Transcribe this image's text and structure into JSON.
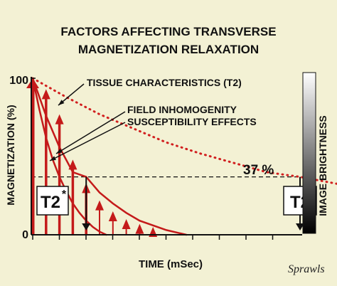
{
  "chart_data": {
    "type": "line",
    "title_line1": "FACTORS AFFECTING TRANSVERSE",
    "title_line2": "MAGNETIZATION RELAXATION",
    "xlabel": "TIME (mSec)",
    "ylabel": "MAGNETIZATION (%)",
    "y_ticks": [
      "100",
      "0"
    ],
    "ylim": [
      0,
      100
    ],
    "reference_level": {
      "value": 37,
      "label": "37 %"
    },
    "series": [
      {
        "name": "TISSUE CHARACTERISTICS (T2)",
        "style": "dotted",
        "color": "#d11f1f",
        "points": [
          [
            0,
            100
          ],
          [
            5,
            88
          ],
          [
            10,
            77
          ],
          [
            15,
            68
          ],
          [
            20,
            59
          ],
          [
            25,
            52
          ],
          [
            30,
            46
          ],
          [
            35,
            40
          ],
          [
            40,
            37
          ],
          [
            45,
            33
          ],
          [
            50,
            29
          ],
          [
            55,
            26
          ],
          [
            60,
            23
          ],
          [
            65,
            21
          ],
          [
            70,
            19
          ]
        ]
      },
      {
        "name": "FIELD INHOMOGENITY",
        "style": "solid",
        "color": "#c41a1a",
        "points": [
          [
            0,
            100
          ],
          [
            2,
            76
          ],
          [
            4,
            56
          ],
          [
            6,
            40
          ],
          [
            8,
            37
          ],
          [
            10,
            27
          ],
          [
            12,
            20
          ],
          [
            14,
            14
          ],
          [
            16,
            9
          ],
          [
            18,
            6
          ],
          [
            20,
            3
          ],
          [
            22,
            1
          ],
          [
            23,
            0
          ]
        ]
      },
      {
        "name": "SUSCEPTIBILITY EFFECTS",
        "style": "solid",
        "color": "#c41a1a",
        "points": [
          [
            0,
            100
          ],
          [
            1,
            80
          ],
          [
            2,
            62
          ],
          [
            3,
            48
          ],
          [
            4,
            37
          ],
          [
            5,
            28
          ],
          [
            6,
            20
          ],
          [
            7,
            14
          ],
          [
            8,
            9
          ],
          [
            9,
            5
          ],
          [
            10,
            2
          ],
          [
            11,
            0
          ]
        ]
      }
    ],
    "markers": [
      {
        "label": "T2",
        "superscript": "*",
        "x": 8
      },
      {
        "label": "T2",
        "superscript": "",
        "x": 40
      }
    ],
    "echo_spikes": {
      "color": "#c41a1a",
      "points": [
        [
          0,
          100
        ],
        [
          2,
          93
        ],
        [
          4,
          77
        ],
        [
          6,
          48
        ],
        [
          8,
          33
        ],
        [
          10,
          22
        ],
        [
          12,
          15
        ],
        [
          14,
          10
        ],
        [
          16,
          7
        ],
        [
          18,
          5
        ]
      ]
    },
    "brightness_bar": {
      "label": "IMAGE BRIGHTNESS",
      "top_color": "#ffffff",
      "bottom_color": "#000000"
    },
    "grid": false
  },
  "signature": "Sprawls"
}
